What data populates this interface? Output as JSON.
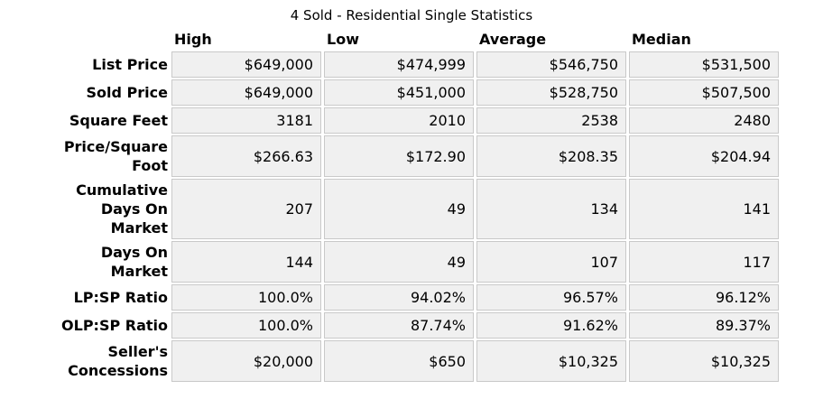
{
  "title": "4 Sold - Residential Single Statistics",
  "table": {
    "columns": [
      "High",
      "Low",
      "Average",
      "Median"
    ],
    "rows": [
      {
        "label": "List Price",
        "values": [
          "$649,000",
          "$474,999",
          "$546,750",
          "$531,500"
        ]
      },
      {
        "label": "Sold Price",
        "values": [
          "$649,000",
          "$451,000",
          "$528,750",
          "$507,500"
        ]
      },
      {
        "label": "Square Feet",
        "values": [
          "3181",
          "2010",
          "2538",
          "2480"
        ]
      },
      {
        "label": "Price/Square\nFoot",
        "values": [
          "$266.63",
          "$172.90",
          "$208.35",
          "$204.94"
        ]
      },
      {
        "label": "Cumulative\nDays On\nMarket",
        "values": [
          "207",
          "49",
          "134",
          "141"
        ]
      },
      {
        "label": "Days On\nMarket",
        "values": [
          "144",
          "49",
          "107",
          "117"
        ]
      },
      {
        "label": "LP:SP Ratio",
        "values": [
          "100.0%",
          "94.02%",
          "96.57%",
          "96.12%"
        ]
      },
      {
        "label": "OLP:SP Ratio",
        "values": [
          "100.0%",
          "87.74%",
          "91.62%",
          "89.37%"
        ]
      },
      {
        "label": "Seller's\nConcessions",
        "values": [
          "$20,000",
          "$650",
          "$10,325",
          "$10,325"
        ]
      }
    ]
  },
  "colors": {
    "cell_background": "#f0f0f0",
    "cell_border": "#c9c9c9",
    "text": "#000000",
    "page_background": "#ffffff"
  }
}
